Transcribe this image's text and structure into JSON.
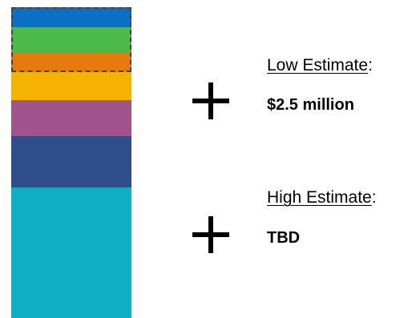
{
  "stack": {
    "segments": [
      {
        "color": "#0b6fc6"
      },
      {
        "color": "#4cba49"
      },
      {
        "color": "#e67b0c"
      },
      {
        "color": "#f4b300"
      },
      {
        "color": "#a0538d"
      },
      {
        "color": "#2e4e8a"
      },
      {
        "color": "#10aec2"
      }
    ],
    "dashed_outline_color": "#444444"
  },
  "estimates": {
    "low": {
      "label": "Low Estimate",
      "suffix": ":",
      "value": "$2.5 million"
    },
    "high": {
      "label": "High Estimate",
      "suffix": ":",
      "value": "TBD"
    }
  },
  "icons": {
    "plus_low": "plus-icon",
    "plus_high": "plus-icon"
  }
}
